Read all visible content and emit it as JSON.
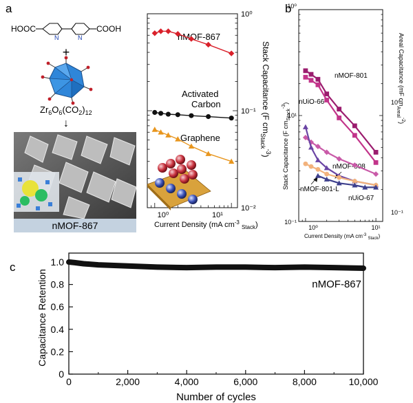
{
  "panels": {
    "a": "a",
    "b": "b",
    "c": "c"
  },
  "scheme": {
    "linker_left": "HOOC",
    "linker_right": "COOH",
    "ring_n": "N",
    "plus": "+",
    "cluster_formula_main": "Zr",
    "cluster_formula_sub1": "6",
    "cluster_formula_o": "O",
    "cluster_formula_sub2": "6",
    "cluster_formula_rest": "(CO",
    "cluster_formula_sub3": "2",
    "cluster_formula_end": ")",
    "cluster_formula_sub4": "12",
    "arrow": "↓",
    "sem_caption": "nMOF-867"
  },
  "chart_data": [
    {
      "panel": "a",
      "type": "line",
      "xscale": "log",
      "yscale": "log",
      "xlim": [
        0.8,
        12
      ],
      "ylim": [
        0.01,
        1
      ],
      "xticks": [
        "10⁰",
        "10¹"
      ],
      "yticks": [
        "10⁰",
        "10⁻¹",
        "10⁻²"
      ],
      "xlabel_main": "Current Density (mA cm",
      "xlabel_sup": "-3",
      "xlabel_sub": "Stack",
      "ylabel_main": "Stack Capacitance (F cm",
      "ylabel_sub": "Stack",
      "ylabel_sup": "-3",
      "series": [
        {
          "name": "nMOF-867",
          "color": "#d9202a",
          "marker": "diamond",
          "x": [
            1.0,
            1.2,
            1.5,
            2.0,
            3.0,
            5.0,
            10.0
          ],
          "y": [
            0.63,
            0.66,
            0.66,
            0.62,
            0.55,
            0.48,
            0.39
          ]
        },
        {
          "name_line1": "Activated",
          "name_line2": "Carbon",
          "color": "#111111",
          "marker": "circle",
          "x": [
            1.0,
            1.2,
            1.5,
            2.0,
            3.0,
            5.0,
            10.0
          ],
          "y": [
            0.096,
            0.094,
            0.092,
            0.091,
            0.089,
            0.087,
            0.084
          ]
        },
        {
          "name": "Graphene",
          "color": "#e8961e",
          "marker": "triangle",
          "x": [
            1.0,
            1.2,
            1.5,
            2.0,
            3.0,
            5.0,
            10.0
          ],
          "y": [
            0.064,
            0.06,
            0.056,
            0.051,
            0.043,
            0.036,
            0.03
          ]
        }
      ]
    },
    {
      "panel": "b",
      "type": "line",
      "xscale": "log",
      "yscale": "log",
      "xlim": [
        0.8,
        12.5
      ],
      "ylim": [
        0.1,
        10
      ],
      "xticks": [
        "10⁰",
        "10¹"
      ],
      "yticks": [
        "10¹",
        "10⁰",
        "10⁻¹"
      ],
      "right_yticks": [
        "10⁰",
        "10⁻¹"
      ],
      "xlabel_main": "Current Density (mA cm",
      "xlabel_sup": "-3",
      "xlabel_sub": "Stack",
      "ylabel_main": "Stack Capacitance (F cm",
      "ylabel_sub": "Stack",
      "ylabel_sup": "-3",
      "ylabel2_main": "Areal Capacitance (mF cm",
      "ylabel2_sub": "Areal",
      "ylabel2_sup": "-2",
      "series": [
        {
          "name": "nMOF-801",
          "color": "#9b1c6e",
          "marker": "square",
          "x": [
            1.0,
            1.2,
            1.5,
            2.0,
            3.0,
            5.0,
            10.0
          ],
          "y": [
            2.65,
            2.45,
            2.2,
            1.6,
            1.15,
            0.8,
            0.45
          ]
        },
        {
          "name": "nUiO-66",
          "color": "#c2348a",
          "marker": "square",
          "x": [
            1.0,
            1.2,
            1.5,
            2.0,
            3.0,
            5.0,
            10.0
          ],
          "y": [
            2.3,
            2.15,
            1.95,
            1.4,
            0.95,
            0.65,
            0.36
          ]
        },
        {
          "name": "nMOF-808",
          "color": "#c95aa8",
          "marker": "diamond",
          "x": [
            1.0,
            1.2,
            1.5,
            2.0,
            3.0,
            5.0,
            10.0
          ],
          "y": [
            0.62,
            0.56,
            0.51,
            0.45,
            0.39,
            0.34,
            0.28
          ]
        },
        {
          "name": "nMOF-801-L",
          "color": "#6a44a4",
          "marker": "triangle",
          "x": [
            1.0,
            1.2,
            1.5,
            2.0,
            3.0,
            5.0,
            10.0
          ],
          "y": [
            0.78,
            0.5,
            0.38,
            0.32,
            0.27,
            0.24,
            0.22
          ]
        },
        {
          "name": "nUiO-67",
          "color": "#f2b27c",
          "marker": "circle",
          "x": [
            1.0,
            1.2,
            1.5,
            2.0,
            3.0,
            5.0,
            10.0
          ],
          "y": [
            0.35,
            0.33,
            0.31,
            0.28,
            0.26,
            0.24,
            0.22
          ]
        },
        {
          "name": "",
          "color": "#3d3f8c",
          "marker": "triangle",
          "x": [
            1.5,
            2.0,
            3.0,
            5.0,
            7.0,
            10.0
          ],
          "y": [
            0.27,
            0.25,
            0.23,
            0.22,
            0.21,
            0.21
          ]
        }
      ]
    },
    {
      "panel": "c",
      "type": "line",
      "xlim": [
        0,
        10000
      ],
      "ylim": [
        0,
        1.08
      ],
      "xticks": [
        "0",
        "2,000",
        "4,000",
        "6,000",
        "8,000",
        "10,000"
      ],
      "yticks": [
        "0",
        "0.2",
        "0.4",
        "0.6",
        "0.8",
        "1.0"
      ],
      "xlabel": "Number of cycles",
      "ylabel": "Capacitance Retention",
      "series": [
        {
          "name": "nMOF-867",
          "color": "#111111",
          "x": [
            0,
            200,
            500,
            1000,
            2000,
            3000,
            4000,
            5000,
            6000,
            7000,
            8000,
            9000,
            10000
          ],
          "y": [
            1.0,
            0.995,
            0.985,
            0.975,
            0.965,
            0.955,
            0.95,
            0.955,
            0.955,
            0.95,
            0.955,
            0.95,
            0.945
          ]
        }
      ]
    }
  ]
}
